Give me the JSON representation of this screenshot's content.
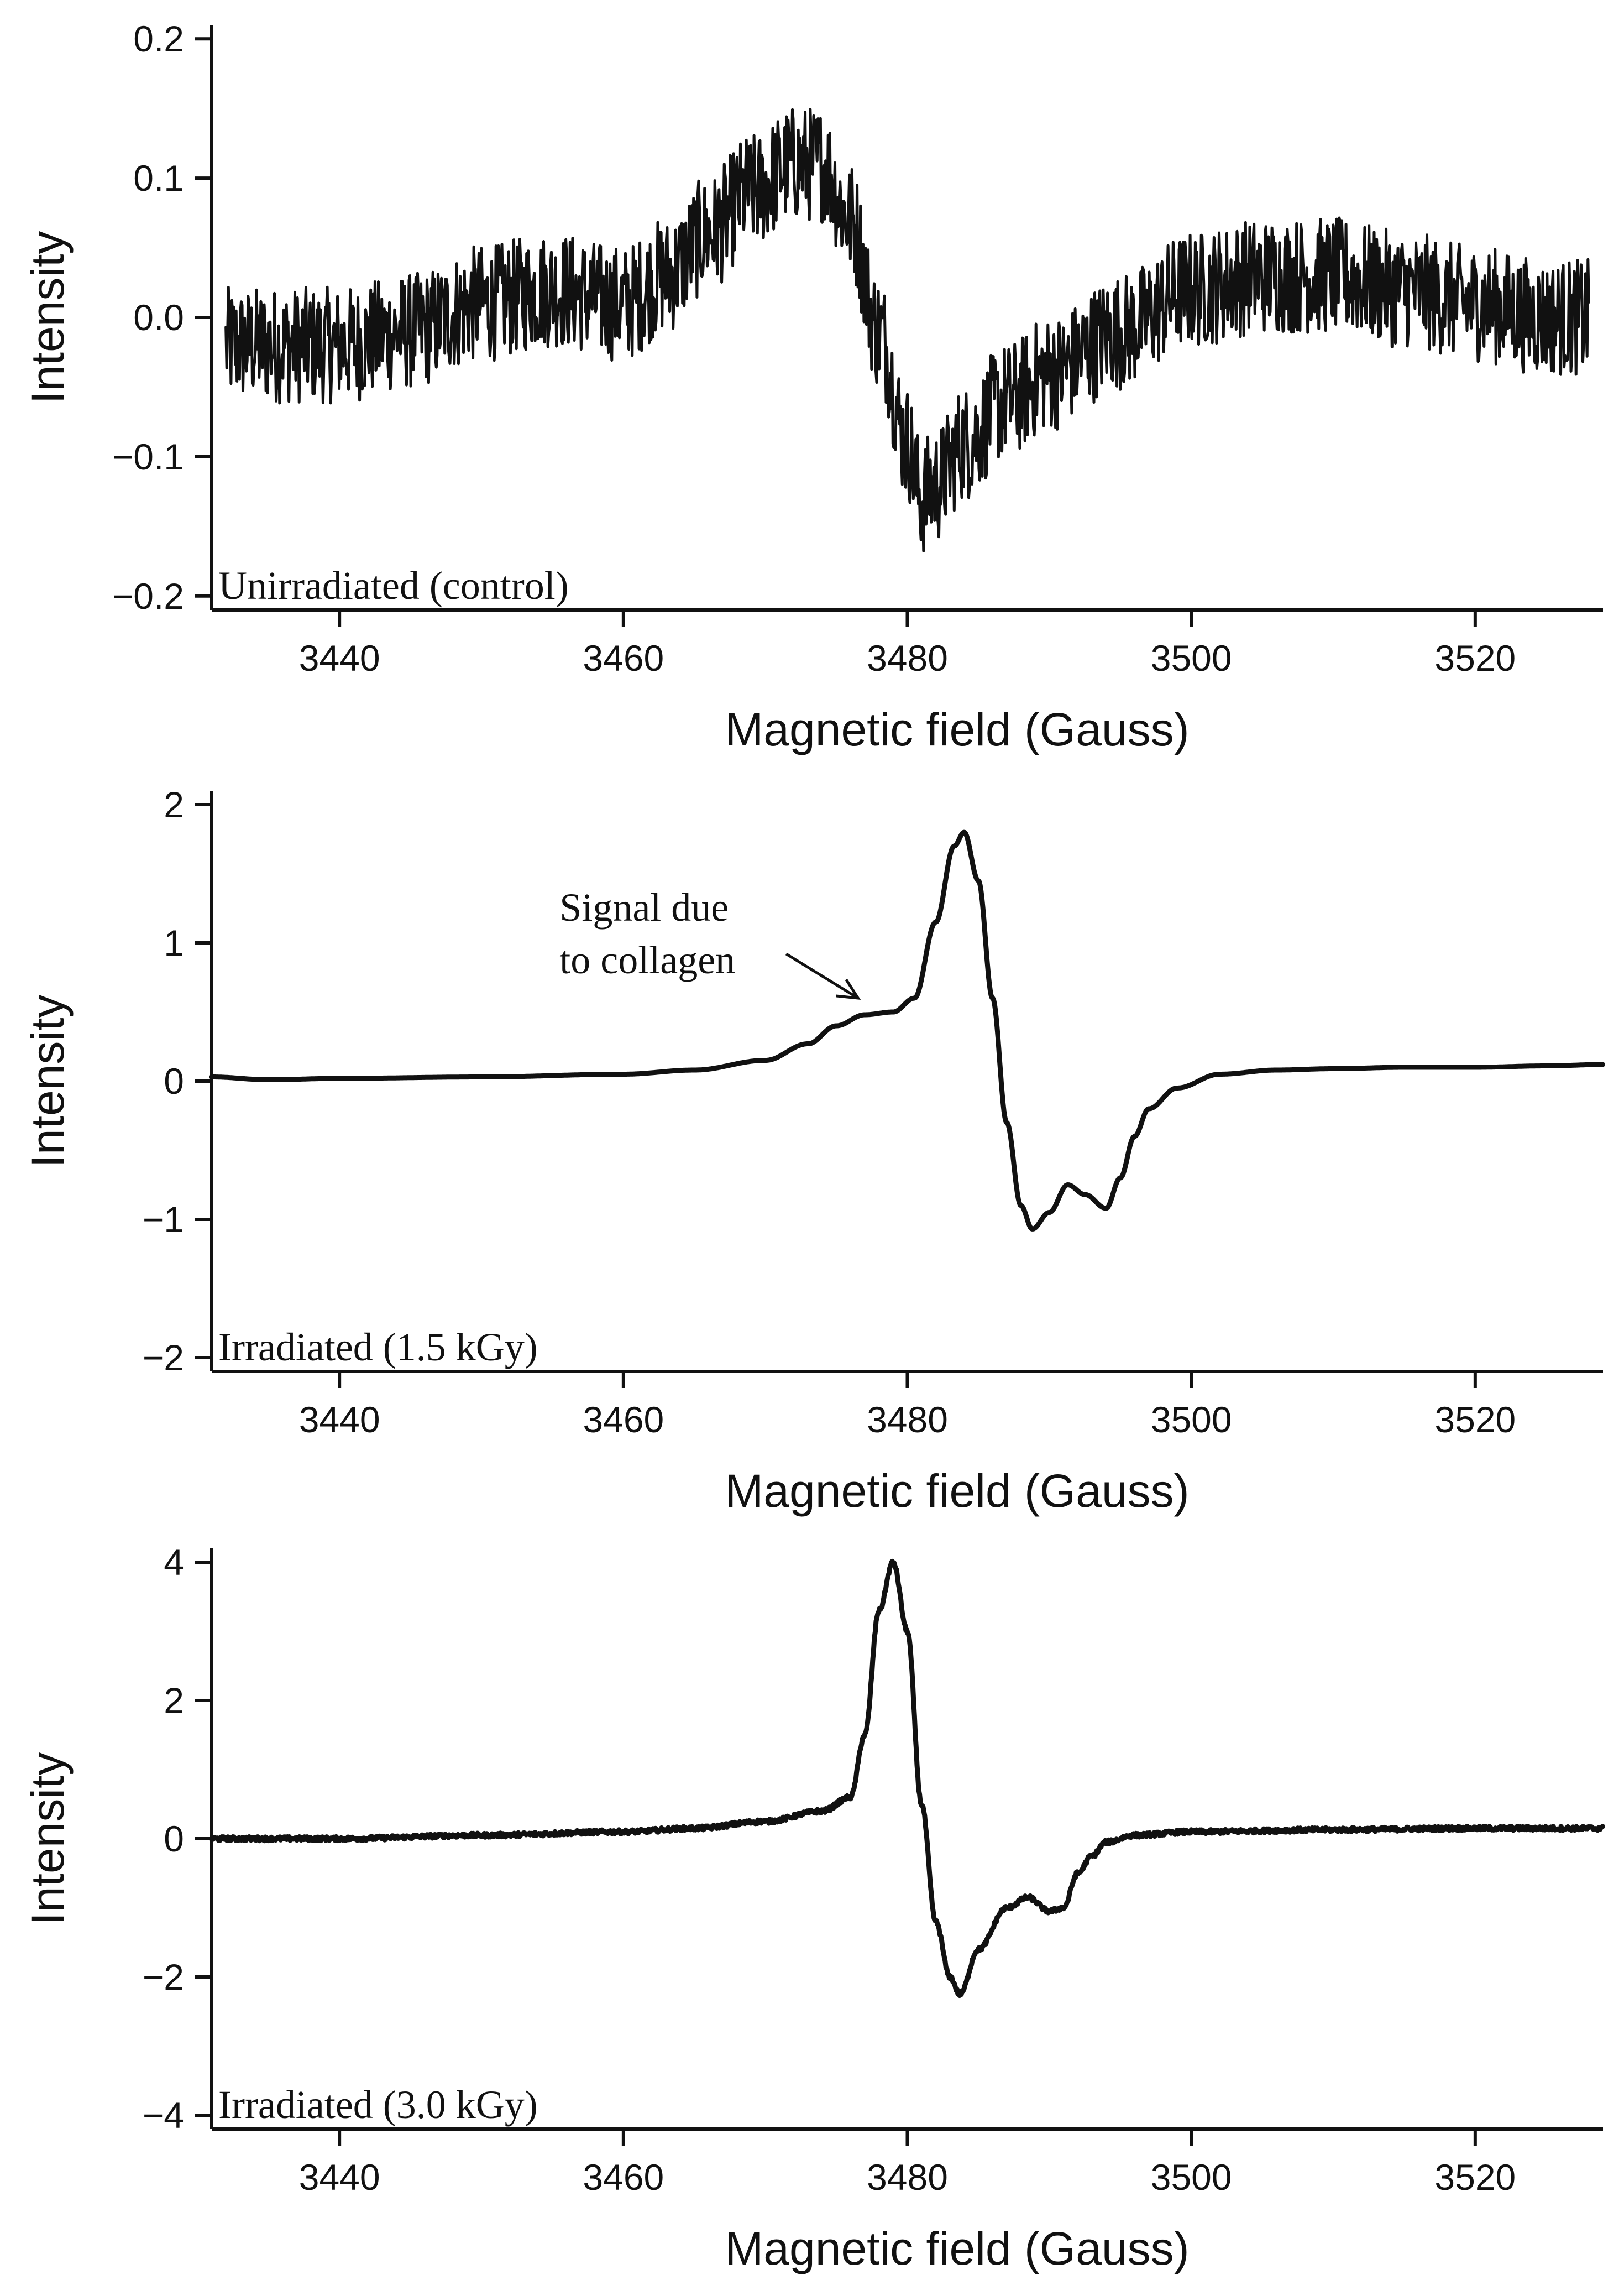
{
  "chart_data": [
    {
      "type": "line",
      "panel_label": "Unirradiated (control)",
      "xlabel": "Magnetic field (Gauss)",
      "ylabel": "Intensity",
      "xlim": [
        3431,
        3529
      ],
      "ylim": [
        -0.21,
        0.21
      ],
      "xticks": [
        3440,
        3460,
        3480,
        3500,
        3520
      ],
      "xtick_labels": [
        "3440",
        "3460",
        "3480",
        "3500",
        "3520"
      ],
      "yticks": [
        0.2,
        0.1,
        0.0,
        -0.1,
        -0.2
      ],
      "ytick_labels": [
        "0.2",
        "0.1",
        "0.0",
        "−0.1",
        "−0.2"
      ],
      "noise": 0.03,
      "series": [
        {
          "name": "Unirradiated (control)",
          "x": [
            3432,
            3436,
            3440,
            3445,
            3450,
            3455,
            3460,
            3463,
            3466,
            3469,
            3472,
            3474,
            3476,
            3478,
            3480,
            3481,
            3482,
            3484,
            3487,
            3490,
            3495,
            3500,
            3505,
            3510,
            3515,
            3520,
            3525,
            3528
          ],
          "y": [
            -0.02,
            -0.02,
            -0.02,
            -0.01,
            0.01,
            0.02,
            0.01,
            0.03,
            0.06,
            0.09,
            0.11,
            0.11,
            0.07,
            -0.01,
            -0.09,
            -0.13,
            -0.12,
            -0.09,
            -0.06,
            -0.04,
            -0.01,
            0.02,
            0.03,
            0.03,
            0.02,
            0.01,
            0.0,
            0.0
          ]
        }
      ]
    },
    {
      "type": "line",
      "panel_label": "Irradiated (1.5 kGy)",
      "xlabel": "Magnetic field (Gauss)",
      "ylabel": "Intensity",
      "xlim": [
        3431,
        3529
      ],
      "ylim": [
        -2.1,
        2.1
      ],
      "xticks": [
        3440,
        3460,
        3480,
        3500,
        3520
      ],
      "xtick_labels": [
        "3440",
        "3460",
        "3480",
        "3500",
        "3520"
      ],
      "yticks": [
        2,
        1,
        0,
        -1,
        -2
      ],
      "ytick_labels": [
        "2",
        "1",
        "0",
        "−1",
        "−2"
      ],
      "noise": 0.0,
      "annotation": {
        "text_line1": "Signal due",
        "text_line2": "to collagen",
        "target_x": 3477.5,
        "target_y": 0.48
      },
      "series": [
        {
          "name": "Irradiated (1.5 kGy)",
          "x": [
            3431,
            3435,
            3440,
            3450,
            3460,
            3465,
            3470,
            3473,
            3475,
            3477,
            3479,
            3480.5,
            3482,
            3483.3,
            3484,
            3485,
            3486,
            3487,
            3488,
            3488.8,
            3490,
            3491.3,
            3492.5,
            3494,
            3495,
            3496,
            3497,
            3499,
            3502,
            3506,
            3510,
            3515,
            3520,
            3525,
            3529
          ],
          "y": [
            0.03,
            0.01,
            0.02,
            0.03,
            0.05,
            0.08,
            0.15,
            0.27,
            0.4,
            0.48,
            0.5,
            0.6,
            1.15,
            1.7,
            1.8,
            1.45,
            0.6,
            -0.3,
            -0.9,
            -1.07,
            -0.95,
            -0.75,
            -0.82,
            -0.92,
            -0.7,
            -0.4,
            -0.2,
            -0.05,
            0.05,
            0.08,
            0.09,
            0.1,
            0.1,
            0.11,
            0.12
          ]
        }
      ]
    },
    {
      "type": "line",
      "panel_label": "Irradiated (3.0 kGy)",
      "xlabel": "Magnetic field (Gauss)",
      "ylabel": "Intensity",
      "xlim": [
        3431,
        3529
      ],
      "ylim": [
        -4.2,
        4.2
      ],
      "xticks": [
        3440,
        3460,
        3480,
        3500,
        3520
      ],
      "xtick_labels": [
        "3440",
        "3460",
        "3480",
        "3500",
        "3520"
      ],
      "yticks": [
        4,
        2,
        0,
        -2,
        -4
      ],
      "ytick_labels": [
        "4",
        "2",
        "0",
        "−2",
        "−4"
      ],
      "noise": 0.03,
      "series": [
        {
          "name": "Irradiated (3.0 kGy)",
          "x": [
            3431,
            3440,
            3450,
            3460,
            3465,
            3470,
            3474,
            3476,
            3477,
            3478,
            3479,
            3480,
            3481,
            3482,
            3483,
            3483.7,
            3485,
            3487,
            3488.5,
            3490,
            3491,
            3492,
            3493,
            3494,
            3496,
            3500,
            3510,
            3520,
            3525,
            3529
          ],
          "y": [
            0.0,
            0.0,
            0.05,
            0.1,
            0.15,
            0.25,
            0.4,
            0.6,
            1.5,
            3.3,
            4.0,
            3.0,
            0.5,
            -1.2,
            -2.0,
            -2.25,
            -1.6,
            -1.0,
            -0.85,
            -1.05,
            -1.0,
            -0.5,
            -0.25,
            -0.05,
            0.05,
            0.1,
            0.13,
            0.15,
            0.15,
            0.15
          ]
        }
      ]
    }
  ]
}
